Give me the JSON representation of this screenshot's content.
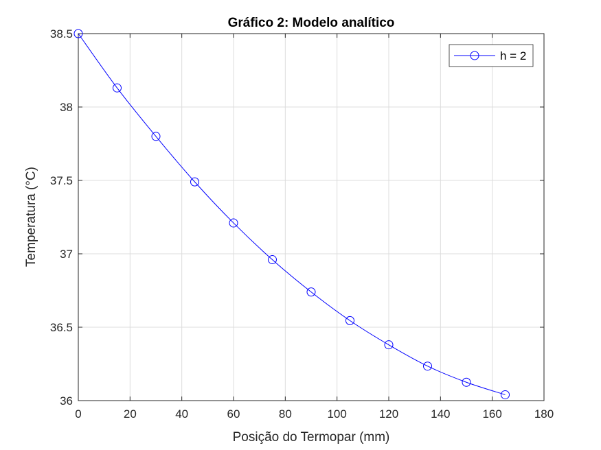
{
  "chart_data": {
    "type": "line",
    "title": "Gráfico 2: Modelo analítico",
    "xlabel": "Posição do Termopar (mm)",
    "ylabel": "Temperatura (°C)",
    "xlim": [
      0,
      180
    ],
    "ylim": [
      36,
      38.5
    ],
    "xticks": [
      0,
      20,
      40,
      60,
      80,
      100,
      120,
      140,
      160,
      180
    ],
    "yticks": [
      36,
      36.5,
      37,
      37.5,
      38,
      38.5
    ],
    "xtick_labels": [
      "0",
      "20",
      "40",
      "60",
      "80",
      "100",
      "120",
      "140",
      "160",
      "180"
    ],
    "ytick_labels": [
      "36",
      "36.5",
      "37",
      "37.5",
      "38",
      "38.5"
    ],
    "grid": true,
    "legend_position": "top-right",
    "series": [
      {
        "name": "h = 2",
        "color": "#0000ff",
        "marker": "circle",
        "x": [
          0,
          15,
          30,
          45,
          60,
          75,
          90,
          105,
          120,
          135,
          150,
          165
        ],
        "y": [
          38.5,
          38.13,
          37.8,
          37.49,
          37.21,
          36.96,
          36.74,
          36.545,
          36.38,
          36.235,
          36.125,
          36.04
        ]
      }
    ]
  }
}
